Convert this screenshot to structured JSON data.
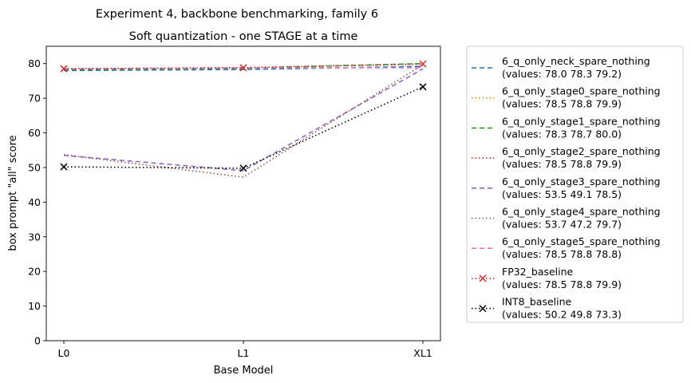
{
  "chart_data": {
    "type": "line",
    "suptitle": "Experiment 4, backbone benchmarking, family 6",
    "title": "Soft quantization - one STAGE at a time",
    "xlabel": "Base Model",
    "ylabel": "box prompt \"all\" score",
    "categories": [
      "L0",
      "L1",
      "XL1"
    ],
    "ylim": [
      0,
      85
    ],
    "yticks": [
      "0",
      "10",
      "20",
      "30",
      "40",
      "50",
      "60",
      "70",
      "80"
    ],
    "grid": false,
    "legend_position": "outside-right",
    "series": [
      {
        "name": "6_q_only_neck_spare_nothing",
        "values_label": "(values: 78.0 78.3 79.2)",
        "values": [
          78.0,
          78.3,
          79.2
        ],
        "color": "#1f77b4",
        "dash": "6,4",
        "marker": ""
      },
      {
        "name": "6_q_only_stage0_spare_nothing",
        "values_label": "(values: 78.5 78.8 79.9)",
        "values": [
          78.5,
          78.8,
          79.9
        ],
        "color": "#ff7f0e",
        "dash": "1.5,3",
        "marker": ""
      },
      {
        "name": "6_q_only_stage1_spare_nothing",
        "values_label": "(values: 78.3 78.7 80.0)",
        "values": [
          78.3,
          78.7,
          80.0
        ],
        "color": "#2ca02c",
        "dash": "6,4",
        "marker": ""
      },
      {
        "name": "6_q_only_stage2_spare_nothing",
        "values_label": "(values: 78.5 78.8 79.9)",
        "values": [
          78.5,
          78.8,
          79.9
        ],
        "color": "#d62728",
        "dash": "1.5,3",
        "marker": ""
      },
      {
        "name": "6_q_only_stage3_spare_nothing",
        "values_label": "(values: 53.5 49.1 78.5)",
        "values": [
          53.5,
          49.1,
          78.5
        ],
        "color": "#9467bd",
        "dash": "6,4",
        "marker": ""
      },
      {
        "name": "6_q_only_stage4_spare_nothing",
        "values_label": "(values: 53.7 47.2 79.7)",
        "values": [
          53.7,
          47.2,
          79.7
        ],
        "color": "#8c564b",
        "dash": "1.5,3",
        "marker": ""
      },
      {
        "name": "6_q_only_stage5_spare_nothing",
        "values_label": "(values: 78.5 78.8 78.8)",
        "values": [
          78.5,
          78.8,
          78.8
        ],
        "color": "#e377c2",
        "dash": "6,4",
        "marker": ""
      },
      {
        "name": "FP32_baseline",
        "values_label": "(values: 78.5 78.8 79.9)",
        "values": [
          78.5,
          78.8,
          79.9
        ],
        "color": "#d62728",
        "dash": "1.5,3",
        "marker": "x"
      },
      {
        "name": "INT8_baseline",
        "values_label": "(values: 50.2 49.8 73.3)",
        "values": [
          50.2,
          49.8,
          73.3
        ],
        "color": "#000000",
        "dash": "1.5,3",
        "marker": "x"
      }
    ]
  }
}
